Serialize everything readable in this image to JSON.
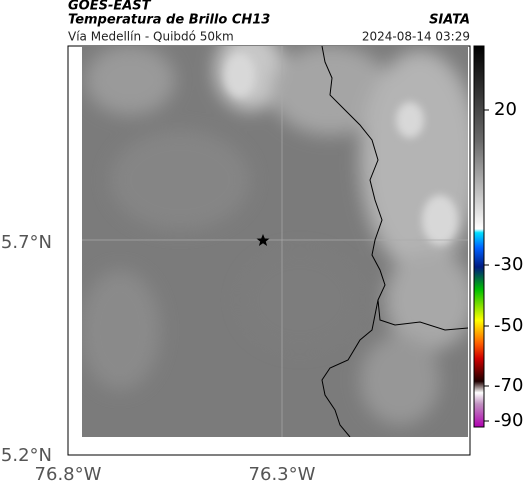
{
  "header": {
    "source": "GOES-EAST",
    "product": "Temperatura de Brillo CH13",
    "org": "SIATA",
    "region": "Vía Medellín - Quibdó 50km",
    "timestamp": "2024-08-14 03:29"
  },
  "latitude_labels": [
    "5.7°N",
    "5.2°N"
  ],
  "longitude_labels": [
    "76.8°W",
    "76.3°W"
  ],
  "colorbar_ticks": [
    20,
    -30,
    -50,
    -70,
    -90
  ]
}
